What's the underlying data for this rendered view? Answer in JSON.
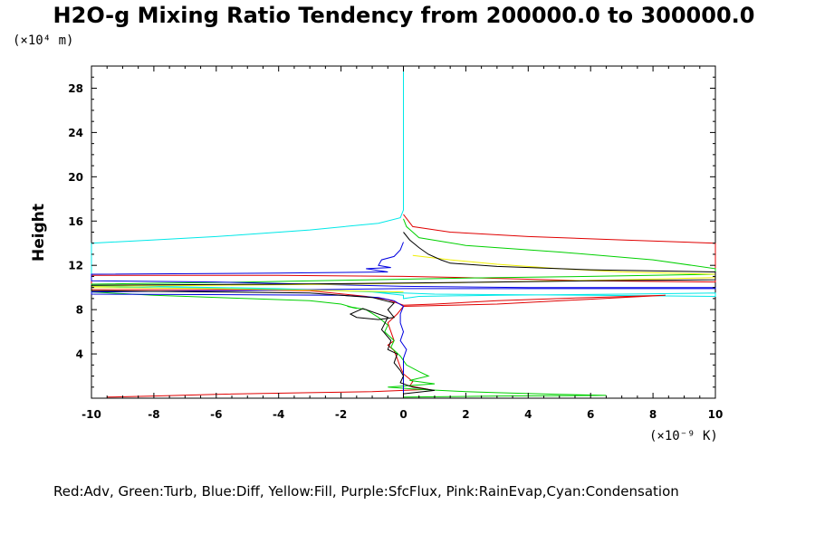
{
  "chart_data": {
    "type": "line",
    "title": "H2O-g Mixing Ratio Tendency from 200000.0 to 300000.0",
    "ylabel": "Height",
    "y_unit": "(×10⁴ m)",
    "x_unit": "(×10⁻⁹ K)",
    "xlim": [
      -10,
      10
    ],
    "ylim": [
      0,
      30
    ],
    "x_ticks": [
      -10,
      -8,
      -6,
      -4,
      -2,
      0,
      2,
      4,
      6,
      8,
      10
    ],
    "x_tick_labels": [
      "-10",
      "-8",
      "-6",
      "-4",
      "-2",
      "0",
      "2",
      "4",
      "6",
      "8",
      "10"
    ],
    "y_ticks": [
      4,
      8,
      12,
      16,
      20,
      24,
      28
    ],
    "y_tick_labels": [
      "4",
      "8",
      "12",
      "16",
      "20",
      "24",
      "28"
    ],
    "legend_text": "Red:Adv, Green:Turb, Blue:Diff, Yellow:Fill, Purple:SfcFlux, Pink:RainEvap,Cyan:Condensation",
    "grid": false,
    "series": [
      {
        "name": "Cyan:Condensation",
        "color": "#00e8e8",
        "points": [
          [
            0,
            29.8
          ],
          [
            0,
            17
          ],
          [
            -0.1,
            16.3
          ],
          [
            -0.8,
            15.8
          ],
          [
            -3,
            15.2
          ],
          [
            -6,
            14.6
          ],
          [
            -8,
            14.3
          ],
          [
            -10,
            14.0
          ],
          [
            -10,
            10.2
          ],
          [
            -8,
            10.1
          ],
          [
            -4,
            9.9
          ],
          [
            -1,
            9.6
          ],
          [
            0,
            9.3
          ],
          [
            0,
            9.0
          ],
          [
            0.5,
            9.2
          ],
          [
            3,
            9.3
          ],
          [
            7,
            9.4
          ],
          [
            10,
            9.5
          ],
          [
            10,
            9.2
          ],
          [
            6,
            9.3
          ],
          [
            1,
            9.4
          ],
          [
            0,
            9.5
          ],
          [
            -3,
            9.8
          ],
          [
            -8,
            10.0
          ],
          [
            -10,
            10.1
          ]
        ]
      },
      {
        "name": "Red:Adv",
        "color": "#e00000",
        "points": [
          [
            0,
            16.6
          ],
          [
            0.3,
            15.5
          ],
          [
            1.5,
            15
          ],
          [
            4,
            14.6
          ],
          [
            7,
            14.3
          ],
          [
            10,
            14.0
          ],
          [
            10,
            10.5
          ],
          [
            6,
            10.6
          ],
          [
            2,
            10.9
          ],
          [
            0,
            11.0
          ],
          [
            -4,
            11.1
          ],
          [
            -10,
            11.1
          ],
          [
            -10,
            9.8
          ],
          [
            -6,
            9.8
          ],
          [
            -3,
            9.7
          ],
          [
            -1.2,
            9.2
          ],
          [
            -0.5,
            8.9
          ],
          [
            0,
            8.4
          ],
          [
            1,
            8.5
          ],
          [
            3,
            8.8
          ],
          [
            6,
            9.1
          ],
          [
            8.4,
            9.3
          ],
          [
            3,
            8.5
          ],
          [
            0,
            8.3
          ],
          [
            -0.2,
            7.6
          ],
          [
            -0.5,
            6.8
          ],
          [
            -0.4,
            6.0
          ],
          [
            -0.3,
            5.2
          ],
          [
            -0.5,
            4.8
          ],
          [
            -0.3,
            4.3
          ],
          [
            -0.2,
            3.6
          ],
          [
            -0.1,
            2.8
          ],
          [
            0,
            2.2
          ],
          [
            0.3,
            1.5
          ],
          [
            0.2,
            1.1
          ],
          [
            0.8,
            0.8
          ],
          [
            -1,
            0.6
          ],
          [
            -3,
            0.5
          ],
          [
            -6,
            0.35
          ],
          [
            -8,
            0.2
          ],
          [
            -9.5,
            0.1
          ]
        ]
      },
      {
        "name": "Green:Turb",
        "color": "#00d000",
        "points": [
          [
            0,
            16.2
          ],
          [
            0.1,
            15.5
          ],
          [
            0.5,
            14.5
          ],
          [
            2,
            13.8
          ],
          [
            5,
            13.2
          ],
          [
            8,
            12.5
          ],
          [
            10,
            11.7
          ],
          [
            10,
            11.2
          ],
          [
            6,
            11.0
          ],
          [
            3,
            10.9
          ],
          [
            1,
            10.8
          ],
          [
            -1,
            10.7
          ],
          [
            -5,
            10.5
          ],
          [
            -10,
            10.3
          ],
          [
            -10,
            9.6
          ],
          [
            -8,
            9.3
          ],
          [
            -5,
            9.0
          ],
          [
            -3,
            8.8
          ],
          [
            -2,
            8.5
          ],
          [
            -1.5,
            8.1
          ],
          [
            -1.8,
            8.3
          ],
          [
            -1.2,
            8.0
          ],
          [
            -0.8,
            7.3
          ],
          [
            -0.5,
            6.6
          ],
          [
            -0.6,
            6.0
          ],
          [
            -0.3,
            5.2
          ],
          [
            -0.4,
            4.6
          ],
          [
            -0.1,
            3.8
          ],
          [
            0.1,
            3.0
          ],
          [
            0.5,
            2.4
          ],
          [
            0.8,
            2.0
          ],
          [
            0.2,
            1.6
          ],
          [
            1,
            1.3
          ],
          [
            -0.5,
            1.0
          ],
          [
            0.5,
            0.8
          ],
          [
            2,
            0.6
          ],
          [
            3,
            0.5
          ],
          [
            5,
            0.35
          ],
          [
            6.5,
            0.25
          ],
          [
            3,
            0.2
          ],
          [
            0,
            0.1
          ]
        ]
      },
      {
        "name": "Blue:Diff",
        "color": "#0000e0",
        "points": [
          [
            0,
            14.1
          ],
          [
            -0.1,
            13.4
          ],
          [
            -0.3,
            12.8
          ],
          [
            -0.7,
            12.5
          ],
          [
            -0.8,
            12.0
          ],
          [
            -0.4,
            11.8
          ],
          [
            -1.2,
            11.7
          ],
          [
            -0.5,
            11.4
          ],
          [
            -4,
            11.3
          ],
          [
            -10,
            11.2
          ],
          [
            -10,
            10.6
          ],
          [
            -6,
            10.5
          ],
          [
            -3,
            10.3
          ],
          [
            0,
            10.1
          ],
          [
            4,
            10.0
          ],
          [
            10,
            10.0
          ],
          [
            10,
            9.9
          ],
          [
            5,
            9.9
          ],
          [
            0,
            9.9
          ],
          [
            -3,
            9.8
          ],
          [
            -6,
            9.7
          ],
          [
            -10,
            9.6
          ],
          [
            -10,
            9.4
          ],
          [
            -2,
            9.3
          ],
          [
            -0.8,
            9.1
          ],
          [
            -0.3,
            8.8
          ],
          [
            0,
            8.3
          ],
          [
            -0.1,
            7.6
          ],
          [
            -0.1,
            6.8
          ],
          [
            0,
            6.0
          ],
          [
            -0.1,
            5.2
          ],
          [
            0.1,
            4.4
          ],
          [
            0,
            3.6
          ],
          [
            0,
            2.8
          ],
          [
            0,
            2.0
          ],
          [
            0,
            1.2
          ],
          [
            0,
            0.5
          ],
          [
            0,
            0.1
          ]
        ]
      },
      {
        "name": "Yellow:Fill",
        "color": "#f0f000",
        "points": [
          [
            0.3,
            12.9
          ],
          [
            1.5,
            12.5
          ],
          [
            3,
            12.1
          ],
          [
            5,
            11.7
          ],
          [
            7,
            11.4
          ],
          [
            10,
            11.2
          ],
          [
            10,
            10.9
          ],
          [
            7,
            10.7
          ],
          [
            5,
            10.6
          ],
          [
            3,
            10.5
          ],
          [
            1,
            10.4
          ],
          [
            -2,
            10.3
          ],
          [
            -6,
            10.2
          ],
          [
            -10,
            10.1
          ],
          [
            -10,
            10.0
          ],
          [
            -6,
            9.9
          ],
          [
            -2,
            9.7
          ],
          [
            0,
            9.6
          ]
        ]
      },
      {
        "name": "",
        "color": "#000000",
        "points": [
          [
            0,
            15.0
          ],
          [
            0.2,
            14.3
          ],
          [
            0.5,
            13.6
          ],
          [
            0.8,
            13.0
          ],
          [
            1.2,
            12.5
          ],
          [
            1.5,
            12.2
          ],
          [
            3,
            11.9
          ],
          [
            6,
            11.6
          ],
          [
            10,
            11.4
          ],
          [
            10,
            10.7
          ],
          [
            6,
            10.6
          ],
          [
            3,
            10.5
          ],
          [
            0,
            10.4
          ],
          [
            -4,
            10.3
          ],
          [
            -10,
            10.2
          ],
          [
            -10,
            9.7
          ],
          [
            -6,
            9.6
          ],
          [
            -3,
            9.5
          ],
          [
            -1,
            9.1
          ],
          [
            -0.3,
            8.6
          ],
          [
            -0.5,
            8.0
          ],
          [
            -0.3,
            7.3
          ],
          [
            -0.8,
            7.1
          ],
          [
            -1.5,
            7.3
          ],
          [
            -1.7,
            7.6
          ],
          [
            -1.3,
            8.1
          ],
          [
            -0.5,
            7.3
          ],
          [
            -0.7,
            6.2
          ],
          [
            -0.4,
            5.2
          ],
          [
            -0.5,
            4.4
          ],
          [
            -0.2,
            4.0
          ],
          [
            -0.3,
            3.2
          ],
          [
            -0.1,
            2.5
          ],
          [
            0,
            2.0
          ],
          [
            -0.1,
            1.4
          ],
          [
            0.3,
            1.0
          ],
          [
            1,
            0.7
          ],
          [
            0,
            0.4
          ]
        ]
      }
    ]
  }
}
